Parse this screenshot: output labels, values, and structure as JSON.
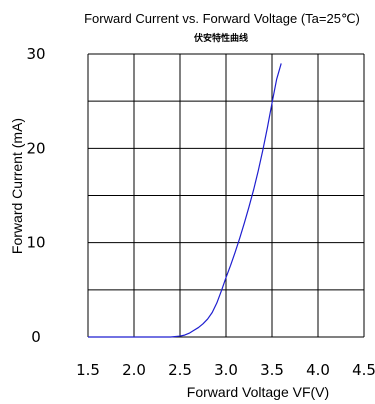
{
  "chart_data": {
    "type": "line",
    "title": "Forward Current vs. Forward Voltage (Ta=25℃)",
    "subtitle": "伏安特性曲线",
    "xlabel": "Forward Voltage  VF(V)",
    "ylabel": "Forward Current (mA)",
    "xlim": [
      1.5,
      4.5
    ],
    "ylim": [
      0,
      30
    ],
    "x_ticks": [
      "1.5",
      "2.0",
      "2.5",
      "3.0",
      "3.5",
      "4.0",
      "4.5"
    ],
    "y_ticks": [
      "0",
      "10",
      "20",
      "30"
    ],
    "grid": true,
    "colors": {
      "line": "#1f1fd0",
      "grid": "#000000"
    },
    "series": [
      {
        "x": [
          1.5,
          2.0,
          2.4,
          2.5,
          2.55,
          2.6,
          2.65,
          2.7,
          2.75,
          2.8,
          2.85,
          2.9,
          2.95,
          3.0,
          3.05,
          3.1,
          3.15,
          3.2,
          3.25,
          3.3,
          3.35,
          3.4,
          3.45,
          3.5,
          3.55,
          3.6
        ],
        "y": [
          0,
          0,
          0,
          0.1,
          0.2,
          0.4,
          0.7,
          1.0,
          1.4,
          1.9,
          2.6,
          3.6,
          4.9,
          6.3,
          7.6,
          9.0,
          10.5,
          12.1,
          13.8,
          15.6,
          17.6,
          19.8,
          22.2,
          24.8,
          27.3,
          29.0
        ]
      }
    ]
  }
}
